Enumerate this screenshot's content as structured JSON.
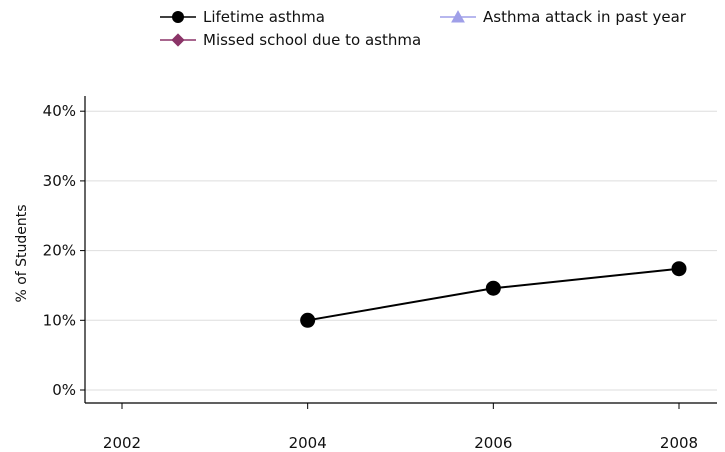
{
  "chart_data": {
    "type": "line",
    "ylabel": "% of Students",
    "xlabel": "",
    "x_ticks": [
      "2002",
      "2004",
      "2006",
      "2008"
    ],
    "y_ticks": [
      "0%",
      "10%",
      "20%",
      "30%",
      "40%"
    ],
    "xlim": [
      2002,
      2008
    ],
    "ylim": [
      0,
      40
    ],
    "grid": true,
    "legend_position": "top",
    "series": [
      {
        "name": "Lifetime asthma",
        "color": "#000000",
        "marker": "circle",
        "x": [
          2004,
          2006,
          2008
        ],
        "y": [
          10,
          14.6,
          17.4
        ]
      },
      {
        "name": "Asthma attack in past year",
        "color": "#9f9fe8",
        "marker": "triangle",
        "x": [],
        "y": []
      },
      {
        "name": "Missed school due to asthma",
        "color": "#8b3468",
        "marker": "diamond",
        "x": [],
        "y": []
      }
    ]
  }
}
